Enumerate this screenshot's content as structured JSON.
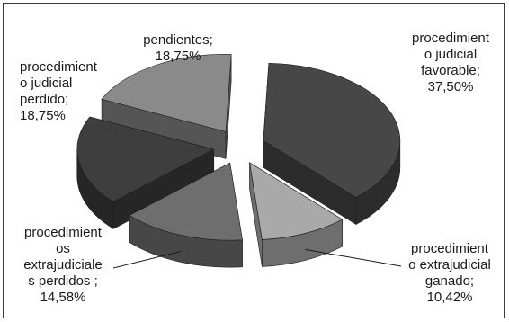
{
  "chart_data": {
    "type": "pie",
    "style": "3d-exploded",
    "slices": [
      {
        "label": "procedimient\no judicial\nfavorable;\n37,50%",
        "name": "procedimiento judicial favorable",
        "value": 37.5,
        "color": "#474747",
        "side": "#2c2c2c"
      },
      {
        "label": "procedimient\no extrajudicial\nganado;\n10,42%",
        "name": "procedimiento extrajudicial ganado",
        "value": 10.42,
        "color": "#a9a9a9",
        "side": "#6e6e6e"
      },
      {
        "label": "procedimient\nos\nextrajudiciale\ns perdidos ;\n14,58%",
        "name": "procedimientos extrajudiciales perdidos",
        "value": 14.58,
        "color": "#6e6e6e",
        "side": "#474747"
      },
      {
        "label": "procedimient\no judicial\nperdido;\n18,75%",
        "name": "procedimiento judicial perdido",
        "value": 18.75,
        "color": "#3e3e3e",
        "side": "#262626"
      },
      {
        "label": "pendientes;\n18,75%",
        "name": "pendientes",
        "value": 18.75,
        "color": "#8a8a8a",
        "side": "#555555"
      }
    ]
  }
}
